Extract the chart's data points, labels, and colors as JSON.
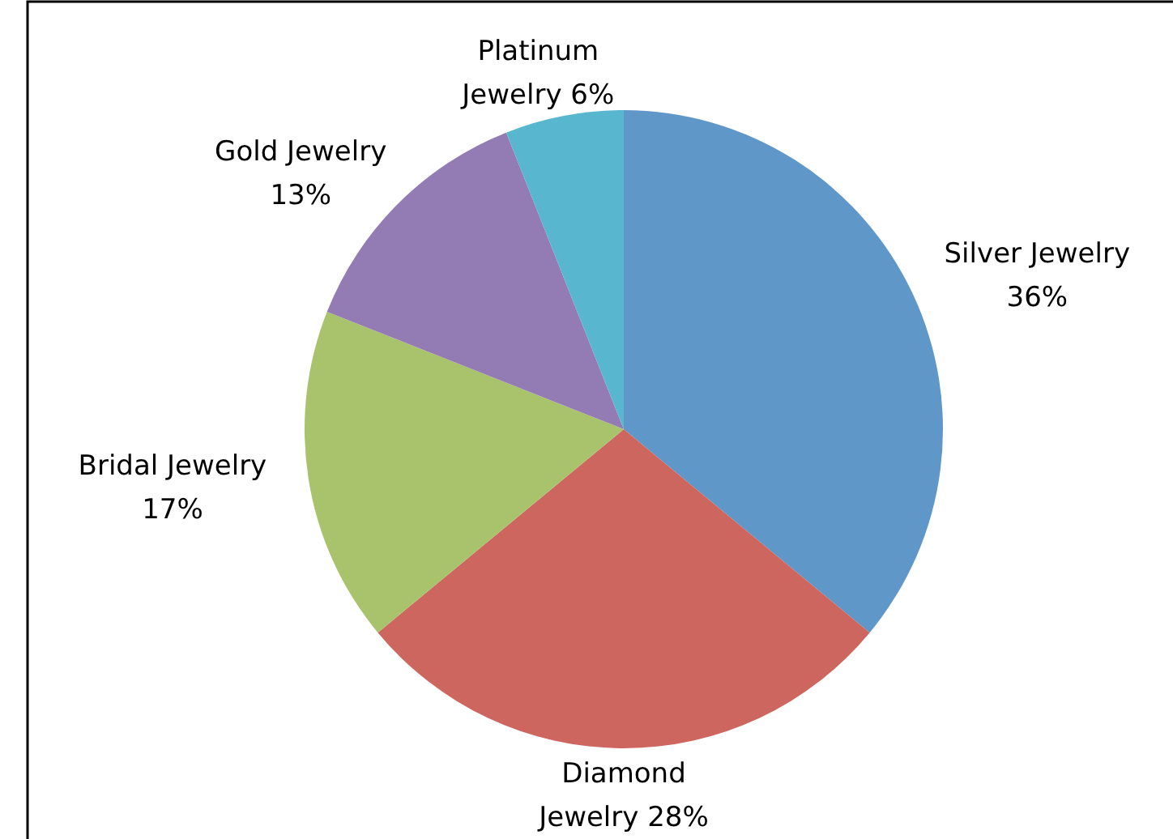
{
  "chart_data": {
    "type": "pie",
    "categories": [
      "Silver Jewelry",
      "Diamond Jewelry",
      "Bridal Jewelry",
      "Gold Jewelry",
      "Platinum Jewelry"
    ],
    "values": [
      36,
      28,
      17,
      13,
      6
    ],
    "value_labels": [
      "36%",
      "28%",
      "17%",
      "13%",
      "6%"
    ],
    "colors": [
      "#5f97c9",
      "#cd665e",
      "#a9c36d",
      "#937bb3",
      "#58b7cf"
    ]
  }
}
